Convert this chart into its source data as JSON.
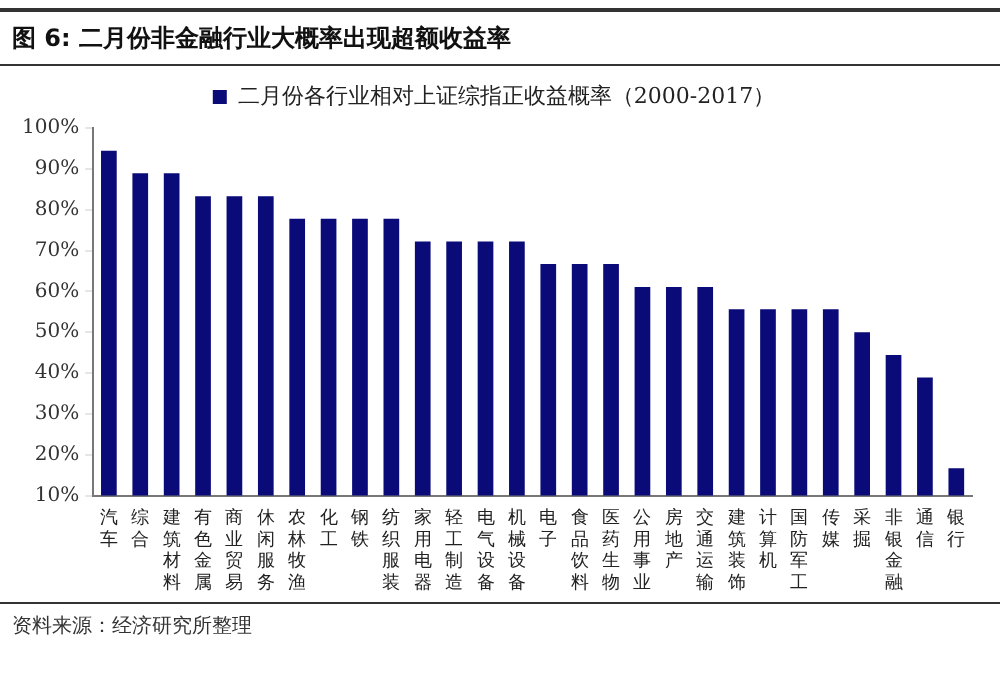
{
  "chart_data": {
    "type": "bar",
    "title": "图 6: 二月份非金融行业大概率出现超额收益率",
    "categories": [
      "汽车",
      "综合",
      "建筑材料",
      "有色金属",
      "商业贸易",
      "休闲服务",
      "农林牧渔",
      "化工",
      "钢铁",
      "纺织服装",
      "家用电器",
      "轻工制造",
      "电气设备",
      "机械设备",
      "电子",
      "食品饮料",
      "医药生物",
      "公用事业",
      "房地产",
      "交通运输",
      "建筑装饰",
      "计算机",
      "国防军工",
      "传媒",
      "采掘",
      "非银金融",
      "通信",
      "银行"
    ],
    "series": [
      {
        "name": "二月份各行业相对上证综指正收益概率（2000-2017）",
        "color": "#0a0a78",
        "values": [
          94.4,
          88.9,
          88.9,
          83.3,
          83.3,
          83.3,
          77.8,
          77.8,
          77.8,
          77.8,
          72.2,
          72.2,
          72.2,
          72.2,
          66.7,
          66.7,
          66.7,
          61.1,
          61.1,
          61.1,
          55.6,
          55.6,
          55.6,
          55.6,
          50,
          44.4,
          38.9,
          16.7
        ]
      }
    ],
    "ylim": [
      10,
      100
    ],
    "yticks": [
      {
        "value": 10,
        "label": "10%"
      },
      {
        "value": 20,
        "label": "20%"
      },
      {
        "value": 30,
        "label": "30%"
      },
      {
        "value": 40,
        "label": "40%"
      },
      {
        "value": 50,
        "label": "50%"
      },
      {
        "value": 60,
        "label": "60%"
      },
      {
        "value": 70,
        "label": "70%"
      },
      {
        "value": 80,
        "label": "80%"
      },
      {
        "value": 90,
        "label": "90%"
      },
      {
        "value": 100,
        "label": "100%"
      }
    ],
    "grid": false,
    "legend": "top",
    "annotations": [
      "资料来源：经济研究所整理"
    ]
  }
}
